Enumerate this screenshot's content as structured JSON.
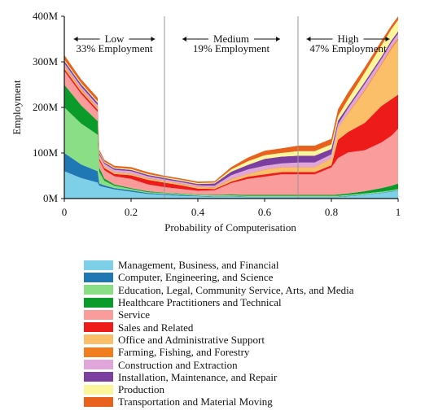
{
  "chart_data": {
    "type": "area",
    "stacked": true,
    "xlabel": "Probability of Computerisation",
    "ylabel": "Employment",
    "xlim": [
      0,
      1
    ],
    "ylim": [
      0,
      400
    ],
    "x_ticks": [
      "0",
      "0.2",
      "0.4",
      "0.6",
      "0.8",
      "1"
    ],
    "x_tick_values": [
      0,
      0.2,
      0.4,
      0.6,
      0.8,
      1
    ],
    "y_ticks": [
      "0M",
      "100M",
      "200M",
      "300M",
      "400M"
    ],
    "y_tick_values": [
      0,
      100,
      200,
      300,
      400
    ],
    "band_dividers": [
      0.3,
      0.7
    ],
    "bands": [
      {
        "name": "Low",
        "label": "33% Employment",
        "from": 0,
        "to": 0.3
      },
      {
        "name": "Medium",
        "label": "19% Employment",
        "from": 0.3,
        "to": 0.7
      },
      {
        "name": "High",
        "label": "47% Employment",
        "from": 0.7,
        "to": 1
      }
    ],
    "legend_position": "below",
    "x": [
      0,
      0.05,
      0.1,
      0.105,
      0.12,
      0.15,
      0.2,
      0.25,
      0.3,
      0.35,
      0.4,
      0.45,
      0.5,
      0.55,
      0.6,
      0.65,
      0.7,
      0.75,
      0.8,
      0.82,
      0.85,
      0.9,
      0.95,
      0.98,
      1
    ],
    "series": [
      {
        "name": "Management, Business, and Financial",
        "color": "#7ecfe8",
        "values": [
          60,
          45,
          35,
          28,
          25,
          20,
          15,
          10,
          8,
          6,
          5,
          4,
          4,
          3,
          3,
          3,
          3,
          3,
          3,
          3,
          5,
          8,
          12,
          15,
          18
        ]
      },
      {
        "name": "Computer, Engineering, and Science",
        "color": "#1f77b4",
        "values": [
          40,
          30,
          25,
          5,
          4,
          3,
          3,
          2,
          2,
          2,
          1,
          1,
          1,
          1,
          1,
          1,
          1,
          1,
          1,
          1,
          1,
          1,
          1,
          1,
          1
        ]
      },
      {
        "name": "Education, Legal, Community Service, Arts, and Media",
        "color": "#8ade86",
        "values": [
          100,
          90,
          80,
          25,
          10,
          5,
          3,
          2,
          2,
          2,
          2,
          2,
          2,
          2,
          2,
          2,
          2,
          2,
          2,
          2,
          2,
          2,
          2,
          2,
          2
        ]
      },
      {
        "name": "Healthcare Practitioners and Technical",
        "color": "#0a9b2a",
        "values": [
          50,
          40,
          30,
          10,
          5,
          3,
          2,
          2,
          1,
          1,
          1,
          1,
          2,
          2,
          2,
          2,
          2,
          2,
          2,
          3,
          3,
          5,
          8,
          10,
          12
        ]
      },
      {
        "name": "Service",
        "color": "#fa9c9c",
        "values": [
          30,
          25,
          20,
          15,
          18,
          18,
          20,
          15,
          12,
          10,
          8,
          10,
          25,
          35,
          40,
          45,
          45,
          45,
          60,
          80,
          90,
          90,
          100,
          110,
          120
        ]
      },
      {
        "name": "Sales and Related",
        "color": "#ee1b1b",
        "values": [
          5,
          5,
          5,
          5,
          5,
          5,
          8,
          10,
          10,
          8,
          5,
          3,
          3,
          5,
          5,
          5,
          5,
          5,
          5,
          40,
          45,
          60,
          80,
          80,
          75
        ]
      },
      {
        "name": "Office and Administrative Support",
        "color": "#fbbf6a",
        "values": [
          5,
          4,
          3,
          3,
          3,
          3,
          3,
          3,
          3,
          3,
          3,
          3,
          5,
          5,
          10,
          10,
          10,
          10,
          15,
          25,
          40,
          70,
          90,
          110,
          120
        ]
      },
      {
        "name": "Farming, Fishing, and Forestry",
        "color": "#f17e1e",
        "values": [
          2,
          2,
          2,
          1,
          1,
          1,
          1,
          1,
          1,
          1,
          1,
          1,
          1,
          1,
          1,
          1,
          1,
          1,
          1,
          1,
          2,
          3,
          3,
          4,
          4
        ]
      },
      {
        "name": "Construction and Extraction",
        "color": "#e0a6d9",
        "values": [
          5,
          5,
          5,
          4,
          5,
          5,
          5,
          4,
          3,
          3,
          3,
          3,
          8,
          10,
          8,
          8,
          10,
          10,
          8,
          8,
          10,
          12,
          10,
          10,
          10
        ]
      },
      {
        "name": "Installation, Maintenance, and Repair",
        "color": "#7b3fa0",
        "values": [
          5,
          5,
          5,
          4,
          3,
          3,
          3,
          3,
          3,
          3,
          3,
          5,
          8,
          10,
          15,
          15,
          15,
          15,
          12,
          8,
          5,
          5,
          5,
          5,
          5
        ]
      },
      {
        "name": "Production",
        "color": "#fbf59b",
        "values": [
          3,
          3,
          3,
          2,
          2,
          2,
          2,
          2,
          2,
          2,
          2,
          2,
          5,
          8,
          8,
          8,
          10,
          10,
          10,
          10,
          15,
          20,
          25,
          25,
          25
        ]
      },
      {
        "name": "Transportation and Material Moving",
        "color": "#e8611d",
        "values": [
          10,
          8,
          8,
          5,
          4,
          4,
          4,
          4,
          3,
          3,
          3,
          3,
          5,
          8,
          10,
          10,
          12,
          12,
          12,
          15,
          15,
          12,
          10,
          8,
          8
        ]
      }
    ]
  }
}
